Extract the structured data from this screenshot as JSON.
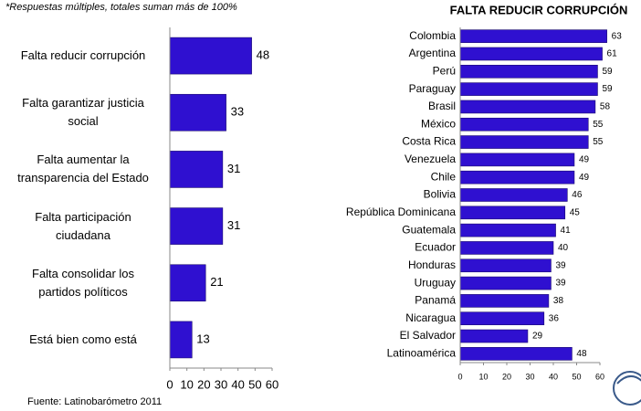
{
  "chart_data": [
    {
      "type": "hbar",
      "note": "*Respuestas múltiples, totales suman más de 100%",
      "source": "Fuente: Latinobarómetro 2011",
      "categories": [
        "Falta reducir corrupción",
        "Falta garantizar justicia\nsocial",
        "Falta aumentar la\ntransparencia del Estado",
        "Falta participación\nciudadana",
        "Falta consolidar los\npartidos políticos",
        "Está bien como está"
      ],
      "values": [
        48,
        33,
        31,
        31,
        21,
        13
      ],
      "color": "#2f10d0",
      "xlim": [
        0,
        60
      ],
      "xticks": [
        0,
        10,
        20,
        30,
        40,
        50,
        60
      ]
    },
    {
      "type": "hbar",
      "title": "FALTA REDUCIR CORRUPCIÓN",
      "categories": [
        "Colombia",
        "Argentina",
        "Perú",
        "Paraguay",
        "Brasil",
        "México",
        "Costa Rica",
        "Venezuela",
        "Chile",
        "Bolivia",
        "República Dominicana",
        "Guatemala",
        "Ecuador",
        "Honduras",
        "Uruguay",
        "Panamá",
        "Nicaragua",
        "El Salvador",
        "Latinoamérica"
      ],
      "values": [
        63,
        61,
        59,
        59,
        58,
        55,
        55,
        49,
        49,
        46,
        45,
        41,
        40,
        39,
        39,
        38,
        36,
        29,
        48
      ],
      "color": "#2f10d0",
      "xlim": [
        0,
        60
      ],
      "xticks": [
        0,
        10,
        20,
        30,
        40,
        50,
        60
      ]
    }
  ]
}
